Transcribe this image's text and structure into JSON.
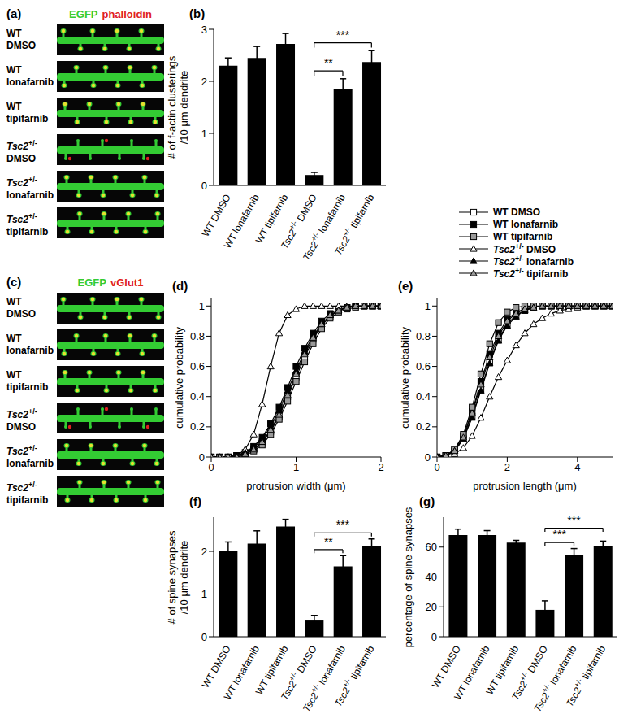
{
  "images": [
    {
      "title": "(a)",
      "channels": [
        {
          "name": "EGFP",
          "color": "#33cc33"
        },
        {
          "name": "phalloidin",
          "color": "#e02020"
        }
      ],
      "rows": [
        "WT DMSO",
        "WT lonafarnib",
        "WT tipifarnib",
        "Tsc2+/- DMSO",
        "Tsc2+/- lonafarnib",
        "Tsc2+/- tipifarnib"
      ]
    },
    {
      "title": "(c)",
      "channels": [
        {
          "name": "EGFP",
          "color": "#33cc33"
        },
        {
          "name": "vGlut1",
          "color": "#e02020"
        }
      ],
      "rows": [
        "WT DMSO",
        "WT lonafarnib",
        "WT tipifarnib",
        "Tsc2+/- DMSO",
        "Tsc2+/- lonafarnib",
        "Tsc2+/- tipifarnib"
      ]
    }
  ],
  "chart_data": [
    {
      "title": "(b)",
      "type": "bar",
      "categories": [
        "WT DMSO",
        "WT lonafarnib",
        "WT tipifarnib",
        "Tsc2+/- DMSO",
        "Tsc2+/- lonafarnib",
        "Tsc2+/- tipifarnib"
      ],
      "values": [
        2.3,
        2.45,
        2.72,
        0.2,
        1.85,
        2.37
      ],
      "errors": [
        0.15,
        0.22,
        0.2,
        0.05,
        0.2,
        0.22
      ],
      "color": "#000000",
      "ylabel": "# of f-actin clusterings\n/10 μm dendrite",
      "ylim": [
        0,
        3
      ],
      "yticks": [
        0,
        1,
        2,
        3
      ],
      "annotations": [
        {
          "from": 3,
          "to": 4,
          "text": "**"
        },
        {
          "from": 3,
          "to": 5,
          "text": "***"
        }
      ]
    },
    {
      "title": "(d)",
      "type": "line",
      "xlabel": "protrusion width (μm)",
      "ylabel": "cumulative probability",
      "x": [
        0,
        0.1,
        0.2,
        0.3,
        0.4,
        0.5,
        0.6,
        0.7,
        0.8,
        0.9,
        1.0,
        1.1,
        1.2,
        1.3,
        1.4,
        1.5,
        1.6,
        1.7,
        1.8,
        1.9,
        2.0
      ],
      "xlim": [
        0,
        2
      ],
      "xticks": [
        0,
        1,
        2
      ],
      "ylim": [
        0,
        1.05
      ],
      "yticks": [
        0,
        0.2,
        0.4,
        0.6,
        0.8,
        1
      ],
      "series": [
        {
          "name": "WT DMSO",
          "color": "#ffffff",
          "marker": "square",
          "values": [
            0,
            0,
            0,
            0.01,
            0.02,
            0.05,
            0.1,
            0.17,
            0.27,
            0.4,
            0.53,
            0.66,
            0.78,
            0.87,
            0.93,
            0.97,
            0.99,
            1,
            1,
            1,
            1
          ]
        },
        {
          "name": "WT lonafarnib",
          "color": "#000000",
          "marker": "square",
          "values": [
            0,
            0,
            0,
            0.01,
            0.03,
            0.07,
            0.13,
            0.22,
            0.33,
            0.46,
            0.6,
            0.72,
            0.82,
            0.9,
            0.95,
            0.98,
            0.99,
            1,
            1,
            1,
            1
          ]
        },
        {
          "name": "WT tipifarnib",
          "color": "#999999",
          "marker": "square",
          "values": [
            0,
            0,
            0,
            0,
            0.01,
            0.04,
            0.08,
            0.15,
            0.25,
            0.37,
            0.5,
            0.63,
            0.75,
            0.85,
            0.92,
            0.96,
            0.98,
            0.99,
            1,
            1,
            1
          ]
        },
        {
          "name": "Tsc2+/- DMSO",
          "color": "#ffffff",
          "marker": "triangle",
          "values": [
            0,
            0,
            0,
            0.01,
            0.05,
            0.15,
            0.35,
            0.6,
            0.82,
            0.94,
            0.98,
            1,
            1,
            1,
            1,
            1,
            1,
            1,
            1,
            1,
            1
          ]
        },
        {
          "name": "Tsc2+/- lonafarnib",
          "color": "#000000",
          "marker": "triangle",
          "values": [
            0,
            0,
            0,
            0.01,
            0.03,
            0.06,
            0.12,
            0.2,
            0.31,
            0.44,
            0.57,
            0.7,
            0.8,
            0.88,
            0.94,
            0.97,
            0.99,
            1,
            1,
            1,
            1
          ]
        },
        {
          "name": "Tsc2+/- tipifarnib",
          "color": "#999999",
          "marker": "triangle",
          "values": [
            0,
            0,
            0,
            0,
            0.02,
            0.05,
            0.1,
            0.18,
            0.28,
            0.41,
            0.55,
            0.68,
            0.79,
            0.88,
            0.94,
            0.97,
            0.99,
            1,
            1,
            1,
            1
          ]
        }
      ]
    },
    {
      "title": "(e)",
      "type": "line",
      "legend": "top",
      "xlabel": "protrusion length (μm)",
      "ylabel": "cumulative probability",
      "x": [
        0,
        0.25,
        0.5,
        0.75,
        1,
        1.25,
        1.5,
        1.75,
        2,
        2.25,
        2.5,
        2.75,
        3,
        3.25,
        3.5,
        3.75,
        4,
        4.25,
        4.5,
        4.75,
        5
      ],
      "xlim": [
        0,
        5
      ],
      "xticks": [
        0,
        2,
        4
      ],
      "ylim": [
        0,
        1.05
      ],
      "yticks": [
        0,
        0.2,
        0.4,
        0.6,
        0.8,
        1
      ],
      "series": [
        {
          "name": "WT DMSO",
          "color": "#ffffff",
          "marker": "square",
          "values": [
            0,
            0.01,
            0.04,
            0.12,
            0.27,
            0.45,
            0.63,
            0.78,
            0.88,
            0.94,
            0.97,
            0.99,
            1,
            1,
            1,
            1,
            1,
            1,
            1,
            1,
            1
          ]
        },
        {
          "name": "WT lonafarnib",
          "color": "#000000",
          "marker": "square",
          "values": [
            0,
            0.01,
            0.05,
            0.14,
            0.3,
            0.5,
            0.68,
            0.82,
            0.91,
            0.96,
            0.98,
            0.99,
            1,
            1,
            1,
            1,
            1,
            1,
            1,
            1,
            1
          ]
        },
        {
          "name": "WT tipifarnib",
          "color": "#999999",
          "marker": "square",
          "values": [
            0,
            0.01,
            0.05,
            0.15,
            0.33,
            0.55,
            0.75,
            0.89,
            0.96,
            0.99,
            1,
            1,
            1,
            1,
            1,
            1,
            1,
            1,
            1,
            1,
            1
          ]
        },
        {
          "name": "Tsc2+/- DMSO",
          "color": "#ffffff",
          "marker": "triangle",
          "values": [
            0,
            0.01,
            0.02,
            0.06,
            0.14,
            0.26,
            0.4,
            0.53,
            0.64,
            0.74,
            0.82,
            0.88,
            0.92,
            0.95,
            0.97,
            0.98,
            0.99,
            1,
            1,
            1,
            1
          ]
        },
        {
          "name": "Tsc2+/- lonafarnib",
          "color": "#000000",
          "marker": "triangle",
          "values": [
            0,
            0.01,
            0.04,
            0.12,
            0.26,
            0.44,
            0.62,
            0.77,
            0.87,
            0.93,
            0.97,
            0.99,
            1,
            1,
            1,
            1,
            1,
            1,
            1,
            1,
            1
          ]
        },
        {
          "name": "Tsc2+/- tipifarnib",
          "color": "#999999",
          "marker": "triangle",
          "values": [
            0,
            0.01,
            0.04,
            0.13,
            0.29,
            0.48,
            0.66,
            0.8,
            0.9,
            0.95,
            0.98,
            0.99,
            1,
            1,
            1,
            1,
            1,
            1,
            1,
            1,
            1
          ]
        }
      ]
    },
    {
      "title": "(f)",
      "type": "bar",
      "categories": [
        "WT DMSO",
        "WT lonafarnib",
        "WT tipifarnib",
        "Tsc2+/- DMSO",
        "Tsc2+/- lonafarnib",
        "Tsc2+/- tipifarnib"
      ],
      "values": [
        2.0,
        2.18,
        2.58,
        0.38,
        1.65,
        2.12
      ],
      "errors": [
        0.22,
        0.3,
        0.17,
        0.12,
        0.25,
        0.17
      ],
      "color": "#000000",
      "ylabel": "# of spine synapses\n/10 μm dendrite",
      "ylim": [
        0,
        2.8
      ],
      "yticks": [
        0,
        1,
        2
      ],
      "annotations": [
        {
          "from": 3,
          "to": 4,
          "text": "**"
        },
        {
          "from": 3,
          "to": 5,
          "text": "***"
        }
      ]
    },
    {
      "title": "(g)",
      "type": "bar",
      "categories": [
        "WT DMSO",
        "WT lonafarnib",
        "WT tipifarnib",
        "Tsc2+/- DMSO",
        "Tsc2+/- lonafarnib",
        "Tsc2+/- tipifarnib"
      ],
      "values": [
        68,
        68,
        63,
        18,
        55,
        61
      ],
      "errors": [
        4,
        3,
        1.5,
        6,
        4,
        3
      ],
      "color": "#000000",
      "ylabel": "percentage of spine synapses",
      "ylim": [
        0,
        80
      ],
      "yticks": [
        0,
        20,
        40,
        60
      ],
      "annotations": [
        {
          "from": 3,
          "to": 4,
          "text": "***"
        },
        {
          "from": 3,
          "to": 5,
          "text": "***"
        }
      ]
    }
  ]
}
